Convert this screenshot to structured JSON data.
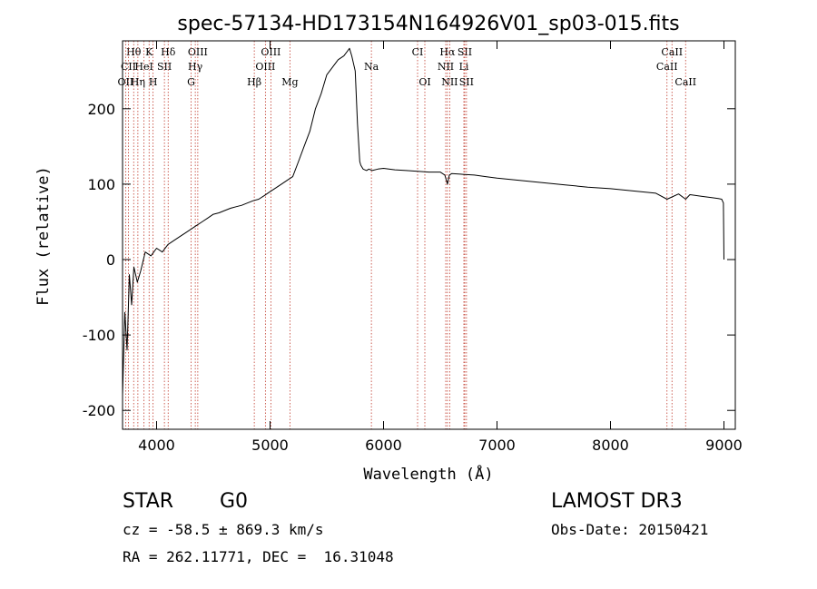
{
  "chart_data": {
    "type": "line",
    "title": "spec-57134-HD173154N164926V01_sp03-015.fits",
    "xlabel": "Wavelength (Å)",
    "ylabel": "Flux (relative)",
    "xlim": [
      3700,
      9100
    ],
    "ylim": [
      -225,
      290
    ],
    "xticks": [
      4000,
      5000,
      6000,
      7000,
      8000,
      9000
    ],
    "yticks": [
      -200,
      -100,
      0,
      100,
      200
    ],
    "series": [
      {
        "name": "flux",
        "x": [
          3700,
          3720,
          3740,
          3760,
          3780,
          3800,
          3830,
          3860,
          3900,
          3950,
          4000,
          4050,
          4100,
          4150,
          4200,
          4250,
          4300,
          4350,
          4400,
          4450,
          4500,
          4550,
          4600,
          4650,
          4700,
          4750,
          4800,
          4850,
          4900,
          4950,
          5000,
          5050,
          5100,
          5150,
          5200,
          5250,
          5300,
          5350,
          5400,
          5450,
          5500,
          5550,
          5600,
          5650,
          5700,
          5720,
          5750,
          5770,
          5790,
          5800,
          5820,
          5850,
          5870,
          5900,
          5950,
          6000,
          6100,
          6200,
          6300,
          6400,
          6500,
          6540,
          6563,
          6580,
          6600,
          6700,
          6800,
          6900,
          7000,
          7200,
          7400,
          7600,
          7800,
          8000,
          8200,
          8400,
          8498,
          8542,
          8600,
          8662,
          8700,
          8800,
          8900,
          8950,
          8980,
          8995,
          9000
        ],
        "y": [
          -180,
          -70,
          -120,
          -20,
          -60,
          -10,
          -30,
          -15,
          10,
          5,
          15,
          10,
          20,
          25,
          30,
          35,
          40,
          45,
          50,
          55,
          60,
          62,
          65,
          68,
          70,
          72,
          75,
          78,
          80,
          85,
          90,
          95,
          100,
          105,
          110,
          130,
          150,
          170,
          200,
          220,
          245,
          255,
          265,
          270,
          280,
          270,
          250,
          180,
          130,
          125,
          120,
          118,
          120,
          118,
          120,
          121,
          119,
          118,
          117,
          116,
          116,
          112,
          100,
          112,
          114,
          113,
          112,
          110,
          108,
          105,
          102,
          99,
          96,
          94,
          91,
          88,
          80,
          83,
          87,
          80,
          86,
          84,
          82,
          81,
          80,
          75,
          0
        ]
      }
    ],
    "annotations": [
      {
        "label": "Hθ",
        "x": 3798,
        "row": 1
      },
      {
        "label": "CII",
        "x": 3752,
        "row": 2
      },
      {
        "label": "OII",
        "x": 3727,
        "row": 3
      },
      {
        "label": "K",
        "x": 3934,
        "row": 1
      },
      {
        "label": "HeI",
        "x": 3889,
        "row": 2
      },
      {
        "label": "Hη",
        "x": 3835,
        "row": 3
      },
      {
        "label": "Hδ",
        "x": 4102,
        "row": 1
      },
      {
        "label": "SII",
        "x": 4069,
        "row": 2
      },
      {
        "label": "H",
        "x": 3969,
        "row": 3
      },
      {
        "label": "OIII",
        "x": 4363,
        "row": 1
      },
      {
        "label": "Hγ",
        "x": 4341,
        "row": 2
      },
      {
        "label": "G",
        "x": 4304,
        "row": 3
      },
      {
        "label": "OIII",
        "x": 5007,
        "row": 1
      },
      {
        "label": "OIII",
        "x": 4959,
        "row": 2
      },
      {
        "label": "Hβ",
        "x": 4861,
        "row": 3
      },
      {
        "label": "Mg",
        "x": 5175,
        "row": 3
      },
      {
        "label": "Na",
        "x": 5893,
        "row": 2
      },
      {
        "label": "CI",
        "x": 6300,
        "row": 1
      },
      {
        "label": "OI",
        "x": 6364,
        "row": 3
      },
      {
        "label": "Hα",
        "x": 6563,
        "row": 1
      },
      {
        "label": "NII",
        "x": 6548,
        "row": 2
      },
      {
        "label": "NII",
        "x": 6583,
        "row": 3
      },
      {
        "label": "SII",
        "x": 6716,
        "row": 1
      },
      {
        "label": "Li",
        "x": 6708,
        "row": 2
      },
      {
        "label": "SII",
        "x": 6731,
        "row": 3
      },
      {
        "label": "CaII",
        "x": 8542,
        "row": 1
      },
      {
        "label": "CaII",
        "x": 8498,
        "row": 2
      },
      {
        "label": "CaII",
        "x": 8662,
        "row": 3
      }
    ]
  },
  "info": {
    "class": "STAR",
    "subclass": "G0",
    "survey": "LAMOST DR3",
    "redshift_line": "cz = -58.5 ± 869.3 km/s",
    "obs_date_line": "Obs-Date: 20150421",
    "coords_line": "RA = 262.11771, DEC =  16.31048"
  },
  "colors": {
    "line": "#000000",
    "marker": "#c0392b"
  }
}
